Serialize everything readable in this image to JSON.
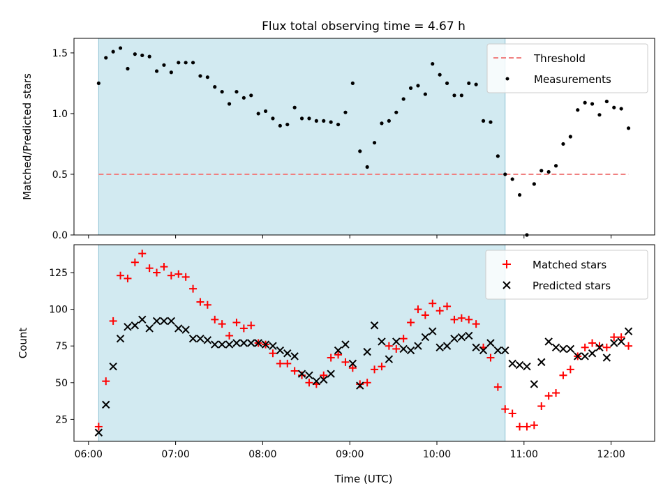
{
  "chart_data": {
    "type": "scatter",
    "title": "Flux total observing time = 4.67 h",
    "xlabel": "Time (UTC)",
    "xlim": [
      "05:50",
      "12:30"
    ],
    "x_ticks": [
      "06:00",
      "07:00",
      "08:00",
      "09:00",
      "10:00",
      "11:00",
      "12:00"
    ],
    "shaded_interval": {
      "start": "06:07",
      "end": "10:47",
      "color": "#add8e6"
    },
    "panels": [
      {
        "id": "top",
        "ylabel": "Matched/Predicted stars",
        "ylim": [
          0,
          1.62
        ],
        "y_ticks": [
          "0.0",
          "0.5",
          "1.0",
          "1.5"
        ],
        "legend_position": "upper right",
        "series": [
          {
            "name": "Threshold",
            "kind": "dashed-line",
            "color": "#f08080",
            "x": [
              "06:07",
              "12:12"
            ],
            "y": [
              0.5,
              0.5
            ]
          },
          {
            "name": "Measurements",
            "kind": "dot",
            "color": "#000000",
            "x": [
              "06:07",
              "06:12",
              "06:17",
              "06:22",
              "06:27",
              "06:32",
              "06:37",
              "06:42",
              "06:47",
              "06:52",
              "06:57",
              "07:02",
              "07:07",
              "07:12",
              "07:17",
              "07:22",
              "07:27",
              "07:32",
              "07:37",
              "07:42",
              "07:47",
              "07:52",
              "07:57",
              "08:02",
              "08:07",
              "08:12",
              "08:17",
              "08:22",
              "08:27",
              "08:32",
              "08:37",
              "08:42",
              "08:47",
              "08:52",
              "08:57",
              "09:02",
              "09:07",
              "09:12",
              "09:17",
              "09:22",
              "09:27",
              "09:32",
              "09:37",
              "09:42",
              "09:47",
              "09:52",
              "09:57",
              "10:02",
              "10:07",
              "10:12",
              "10:17",
              "10:22",
              "10:27",
              "10:32",
              "10:37",
              "10:42",
              "10:47",
              "10:52",
              "10:57",
              "11:02",
              "11:07",
              "11:12",
              "11:17",
              "11:22",
              "11:27",
              "11:32",
              "11:37",
              "11:42",
              "11:47",
              "11:52",
              "11:57",
              "12:02",
              "12:07",
              "12:12"
            ],
            "y": [
              1.25,
              1.46,
              1.51,
              1.54,
              1.37,
              1.49,
              1.48,
              1.47,
              1.35,
              1.4,
              1.34,
              1.42,
              1.42,
              1.42,
              1.31,
              1.3,
              1.22,
              1.18,
              1.08,
              1.18,
              1.13,
              1.15,
              1.0,
              1.02,
              0.96,
              0.9,
              0.91,
              1.05,
              0.96,
              0.96,
              0.94,
              0.94,
              0.93,
              0.91,
              1.01,
              1.25,
              0.69,
              0.56,
              0.76,
              0.92,
              0.94,
              1.01,
              1.12,
              1.21,
              1.23,
              1.16,
              1.41,
              1.32,
              1.25,
              1.15,
              1.15,
              1.25,
              1.24,
              0.94,
              0.93,
              0.65,
              0.5,
              0.46,
              0.33,
              0.0,
              0.42,
              0.53,
              0.52,
              0.57,
              0.75,
              0.81,
              1.03,
              1.09,
              1.08,
              0.99,
              1.1,
              1.05,
              1.04,
              0.88
            ]
          }
        ]
      },
      {
        "id": "bottom",
        "ylabel": "Count",
        "ylim": [
          10,
          144
        ],
        "y_ticks": [
          "25",
          "50",
          "75",
          "100",
          "125"
        ],
        "legend_position": "upper right",
        "series": [
          {
            "name": "Matched stars",
            "kind": "plus",
            "color": "#ff0000",
            "x": [
              "06:07",
              "06:12",
              "06:17",
              "06:22",
              "06:27",
              "06:32",
              "06:37",
              "06:42",
              "06:47",
              "06:52",
              "06:57",
              "07:02",
              "07:07",
              "07:12",
              "07:17",
              "07:22",
              "07:27",
              "07:32",
              "07:37",
              "07:42",
              "07:47",
              "07:52",
              "07:57",
              "08:02",
              "08:07",
              "08:12",
              "08:17",
              "08:22",
              "08:27",
              "08:32",
              "08:37",
              "08:42",
              "08:47",
              "08:52",
              "08:57",
              "09:02",
              "09:07",
              "09:12",
              "09:17",
              "09:22",
              "09:27",
              "09:32",
              "09:37",
              "09:42",
              "09:47",
              "09:52",
              "09:57",
              "10:02",
              "10:07",
              "10:12",
              "10:17",
              "10:22",
              "10:27",
              "10:32",
              "10:37",
              "10:42",
              "10:47",
              "10:52",
              "10:57",
              "11:02",
              "11:07",
              "11:12",
              "11:17",
              "11:22",
              "11:27",
              "11:32",
              "11:37",
              "11:42",
              "11:47",
              "11:52",
              "11:57",
              "12:02",
              "12:07",
              "12:12"
            ],
            "y": [
              20,
              51,
              92,
              123,
              121,
              132,
              138,
              128,
              125,
              129,
              123,
              124,
              122,
              114,
              105,
              103,
              93,
              90,
              82,
              91,
              87,
              89,
              77,
              76,
              70,
              63,
              63,
              58,
              55,
              50,
              49,
              55,
              67,
              69,
              64,
              60,
              49,
              50,
              59,
              61,
              75,
              73,
              80,
              91,
              100,
              96,
              104,
              99,
              102,
              93,
              94,
              93,
              90,
              74,
              67,
              47,
              32,
              29,
              20,
              20,
              21,
              34,
              41,
              43,
              55,
              59,
              68,
              74,
              77,
              75,
              74,
              81,
              81,
              75
            ]
          },
          {
            "name": "Predicted stars",
            "kind": "cross",
            "color": "#000000",
            "x": [
              "06:07",
              "06:12",
              "06:17",
              "06:22",
              "06:27",
              "06:32",
              "06:37",
              "06:42",
              "06:47",
              "06:52",
              "06:57",
              "07:02",
              "07:07",
              "07:12",
              "07:17",
              "07:22",
              "07:27",
              "07:32",
              "07:37",
              "07:42",
              "07:47",
              "07:52",
              "07:57",
              "08:02",
              "08:07",
              "08:12",
              "08:17",
              "08:22",
              "08:27",
              "08:32",
              "08:37",
              "08:42",
              "08:47",
              "08:52",
              "08:57",
              "09:02",
              "09:07",
              "09:12",
              "09:17",
              "09:22",
              "09:27",
              "09:32",
              "09:37",
              "09:42",
              "09:47",
              "09:52",
              "09:57",
              "10:02",
              "10:07",
              "10:12",
              "10:17",
              "10:22",
              "10:27",
              "10:32",
              "10:37",
              "10:42",
              "10:47",
              "10:52",
              "10:57",
              "11:02",
              "11:07",
              "11:12",
              "11:17",
              "11:22",
              "11:27",
              "11:32",
              "11:37",
              "11:42",
              "11:47",
              "11:52",
              "11:57",
              "12:02",
              "12:07",
              "12:12"
            ],
            "y": [
              16,
              35,
              61,
              80,
              88,
              89,
              93,
              87,
              92,
              92,
              92,
              87,
              86,
              80,
              80,
              79,
              76,
              76,
              76,
              77,
              77,
              77,
              77,
              76,
              75,
              72,
              70,
              68,
              56,
              55,
              51,
              52,
              56,
              72,
              76,
              63,
              48,
              71,
              89,
              78,
              66,
              78,
              73,
              72,
              75,
              81,
              85,
              74,
              75,
              80,
              81,
              82,
              74,
              72,
              77,
              72,
              72,
              63,
              62,
              61,
              49,
              64,
              78,
              74,
              73,
              73,
              68,
              68,
              70,
              74,
              67,
              77,
              78,
              85
            ]
          }
        ]
      }
    ]
  }
}
